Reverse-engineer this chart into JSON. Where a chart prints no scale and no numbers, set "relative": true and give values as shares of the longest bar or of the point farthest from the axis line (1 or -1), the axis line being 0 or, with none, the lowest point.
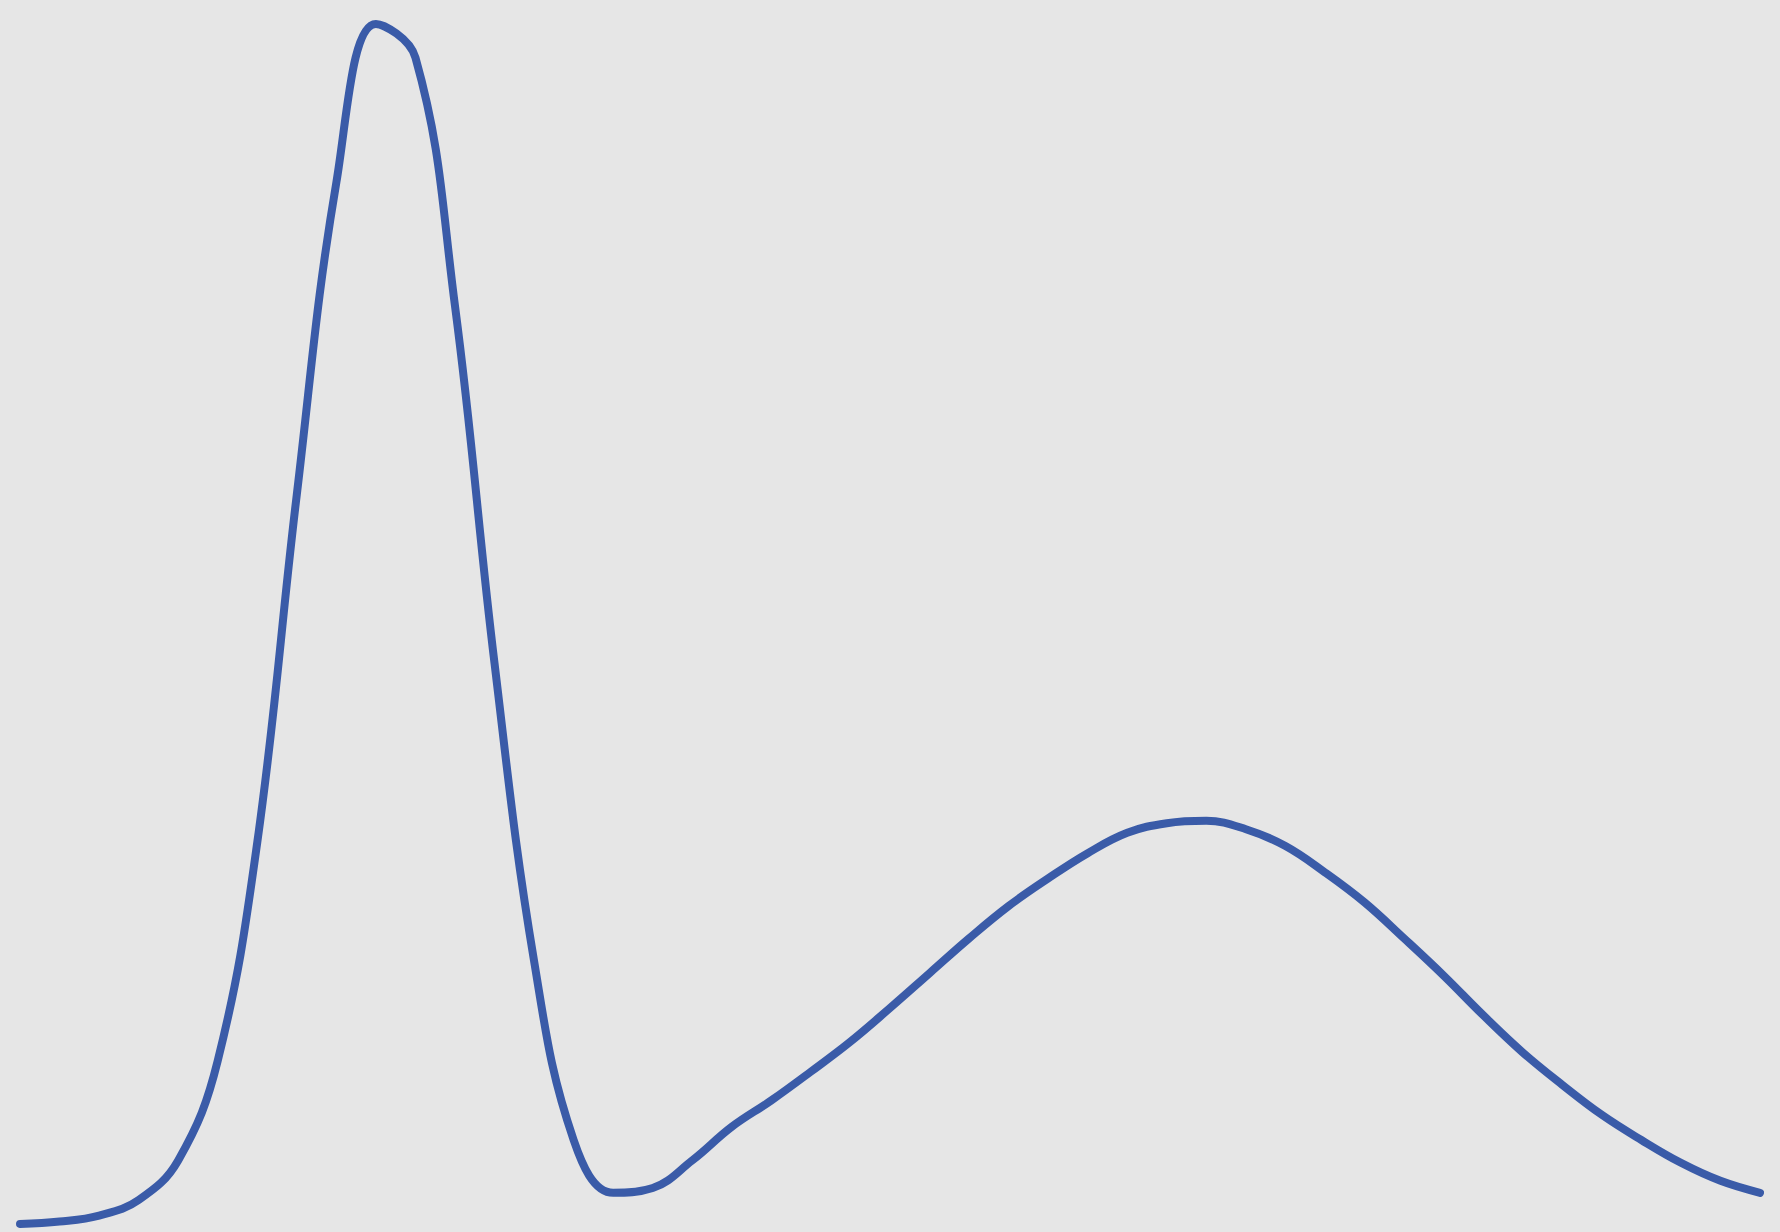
{
  "chart_data": {
    "type": "line",
    "relative": true,
    "color": "#3a5ba8",
    "marker": "none",
    "line_style": "solid",
    "grid": false,
    "tick_labels": false,
    "categories": [
      null,
      null,
      null,
      null,
      null,
      null,
      null,
      null,
      null,
      null,
      null,
      null,
      null,
      null,
      null,
      null,
      null,
      null,
      null,
      null,
      null,
      null,
      null,
      null,
      null,
      null,
      null,
      null,
      null,
      null,
      null,
      null,
      null,
      null,
      null,
      null,
      null,
      null,
      null,
      null,
      null,
      null,
      null,
      null,
      null
    ],
    "values": [
      0,
      0.002,
      0.007,
      0.02,
      0.053,
      0.136,
      0.318,
      0.608,
      0.868,
      1,
      0.972,
      0.765,
      0.467,
      0.219,
      0.07,
      0.026,
      0.03,
      0.053,
      0.081,
      0.103,
      0.127,
      0.152,
      0.18,
      0.209,
      0.238,
      0.265,
      0.288,
      0.309,
      0.326,
      0.334,
      0.336,
      0.329,
      0.315,
      0.293,
      0.268,
      0.238,
      0.207,
      0.174,
      0.143,
      0.116,
      0.091,
      0.07,
      0.051,
      0.036,
      0.026
    ]
  }
}
